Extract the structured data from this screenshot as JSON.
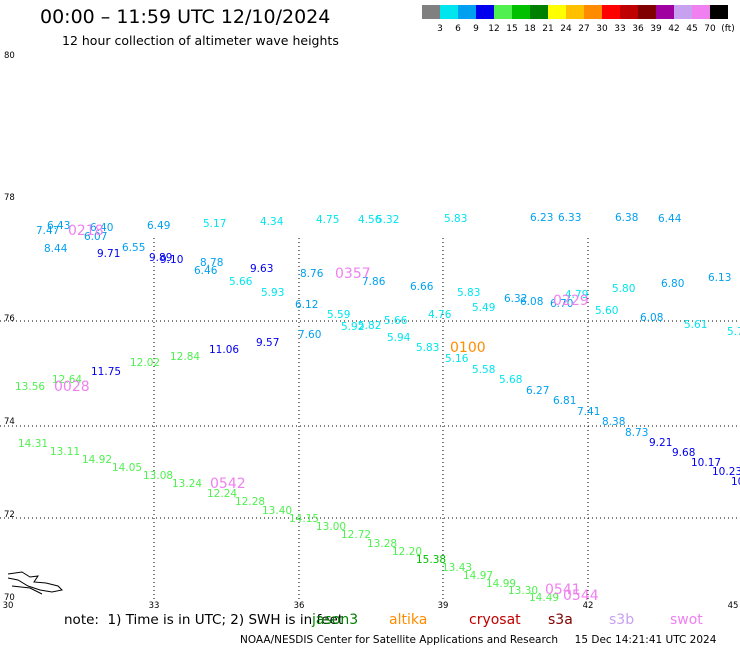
{
  "title": "00:00 – 11:59 UTC 12/10/2024",
  "subtitle": "12 hour collection of altimeter wave heights",
  "legend": {
    "colors": [
      "#808080",
      "#00e5ee",
      "#00a0f0",
      "#0000ee",
      "#50f050",
      "#00c000",
      "#008000",
      "#ffff00",
      "#ffc000",
      "#ff8c00",
      "#ff0000",
      "#c00000",
      "#800000",
      "#a000a0",
      "#c8a0f0",
      "#f080f0",
      "#000000"
    ],
    "labels": [
      "3",
      "6",
      "9",
      "12",
      "15",
      "18",
      "21",
      "24",
      "27",
      "30",
      "33",
      "36",
      "39",
      "42",
      "45",
      "70",
      "(ft)"
    ]
  },
  "axes": {
    "lat_labels": [
      "80",
      "78",
      "76",
      "74",
      "72",
      "70"
    ],
    "lon_labels": [
      "30",
      "33",
      "36",
      "39",
      "42",
      "45"
    ]
  },
  "note": "note:  1) Time is in UTC; 2) SWH is in feet",
  "satellites": [
    {
      "name": "jason3",
      "color": "#008000"
    },
    {
      "name": "altika",
      "color": "#ff8c00"
    },
    {
      "name": "cryosat",
      "color": "#c00000"
    },
    {
      "name": "s3a",
      "color": "#800000"
    },
    {
      "name": "s3b",
      "color": "#c8a0f0"
    },
    {
      "name": "swot",
      "color": "#f080f0"
    }
  ],
  "credit": "NOAA/NESDIS Center for Satellite Applications and Research     15 Dec 14:21:41 UTC 2024",
  "time_labels": [
    {
      "text": "0218",
      "color": "#f080f0"
    },
    {
      "text": "0357",
      "color": "#f080f0"
    },
    {
      "text": "0229",
      "color": "#f080f0"
    },
    {
      "text": "0100",
      "color": "#ff8c00"
    },
    {
      "text": "0028",
      "color": "#f080f0"
    },
    {
      "text": "0542",
      "color": "#f080f0"
    },
    {
      "text": "0541",
      "color": "#f080f0"
    },
    {
      "text": "0544",
      "color": "#f080f0"
    }
  ],
  "wave_heights": [
    {
      "v": "6.43",
      "c": "#00a0f0"
    },
    {
      "v": "7.47",
      "c": "#00a0f0"
    },
    {
      "v": "6.40",
      "c": "#00a0f0"
    },
    {
      "v": "6.07",
      "c": "#00a0f0"
    },
    {
      "v": "6.49",
      "c": "#00a0f0"
    },
    {
      "v": "5.17",
      "c": "#00e5ee"
    },
    {
      "v": "4.34",
      "c": "#00e5ee"
    },
    {
      "v": "4.75",
      "c": "#00e5ee"
    },
    {
      "v": "4.56",
      "c": "#00e5ee"
    },
    {
      "v": "5.32",
      "c": "#00e5ee"
    },
    {
      "v": "5.83",
      "c": "#00e5ee"
    },
    {
      "v": "6.23",
      "c": "#00a0f0"
    },
    {
      "v": "6.33",
      "c": "#00a0f0"
    },
    {
      "v": "6.38",
      "c": "#00a0f0"
    },
    {
      "v": "6.44",
      "c": "#00a0f0"
    },
    {
      "v": "8.44",
      "c": "#00a0f0"
    },
    {
      "v": "9.71",
      "c": "#0000ee"
    },
    {
      "v": "6.55",
      "c": "#00a0f0"
    },
    {
      "v": "9.89",
      "c": "#0000ee"
    },
    {
      "v": "9.10",
      "c": "#0000ee"
    },
    {
      "v": "6.46",
      "c": "#00a0f0"
    },
    {
      "v": "8.78",
      "c": "#00a0f0"
    },
    {
      "v": "9.63",
      "c": "#0000ee"
    },
    {
      "v": "5.66",
      "c": "#00e5ee"
    },
    {
      "v": "5.93",
      "c": "#00e5ee"
    },
    {
      "v": "8.76",
      "c": "#00a0f0"
    },
    {
      "v": "7.86",
      "c": "#00a0f0"
    },
    {
      "v": "6.66",
      "c": "#00a0f0"
    },
    {
      "v": "6.12",
      "c": "#00a0f0"
    },
    {
      "v": "5.59",
      "c": "#00e5ee"
    },
    {
      "v": "5.92",
      "c": "#00e5ee"
    },
    {
      "v": "5.82",
      "c": "#00e5ee"
    },
    {
      "v": "5.66",
      "c": "#00e5ee"
    },
    {
      "v": "4.76",
      "c": "#00e5ee"
    },
    {
      "v": "5.83",
      "c": "#00e5ee"
    },
    {
      "v": "5.49",
      "c": "#00e5ee"
    },
    {
      "v": "6.32",
      "c": "#00a0f0"
    },
    {
      "v": "6.08",
      "c": "#00a0f0"
    },
    {
      "v": "4.79",
      "c": "#00e5ee"
    },
    {
      "v": "6.70",
      "c": "#00a0f0"
    },
    {
      "v": "5.80",
      "c": "#00e5ee"
    },
    {
      "v": "5.60",
      "c": "#00e5ee"
    },
    {
      "v": "6.80",
      "c": "#00a0f0"
    },
    {
      "v": "6.13",
      "c": "#00a0f0"
    },
    {
      "v": "6.08",
      "c": "#00a0f0"
    },
    {
      "v": "5.61",
      "c": "#00e5ee"
    },
    {
      "v": "5.7",
      "c": "#00e5ee"
    },
    {
      "v": "7.60",
      "c": "#00a0f0"
    },
    {
      "v": "5.94",
      "c": "#00e5ee"
    },
    {
      "v": "5.83",
      "c": "#00e5ee"
    },
    {
      "v": "5.16",
      "c": "#00e5ee"
    },
    {
      "v": "5.58",
      "c": "#00e5ee"
    },
    {
      "v": "5.68",
      "c": "#00e5ee"
    },
    {
      "v": "6.27",
      "c": "#00a0f0"
    },
    {
      "v": "6.81",
      "c": "#00a0f0"
    },
    {
      "v": "7.41",
      "c": "#00a0f0"
    },
    {
      "v": "8.38",
      "c": "#00a0f0"
    },
    {
      "v": "8.73",
      "c": "#00a0f0"
    },
    {
      "v": "9.21",
      "c": "#0000ee"
    },
    {
      "v": "9.68",
      "c": "#0000ee"
    },
    {
      "v": "10.17",
      "c": "#0000ee"
    },
    {
      "v": "10.23",
      "c": "#0000ee"
    },
    {
      "v": "10",
      "c": "#0000ee"
    },
    {
      "v": "9.57",
      "c": "#0000ee"
    },
    {
      "v": "11.06",
      "c": "#0000ee"
    },
    {
      "v": "12.84",
      "c": "#50f050"
    },
    {
      "v": "12.02",
      "c": "#50f050"
    },
    {
      "v": "11.75",
      "c": "#0000ee"
    },
    {
      "v": "12.64",
      "c": "#50f050"
    },
    {
      "v": "13.56",
      "c": "#50f050"
    },
    {
      "v": "14.31",
      "c": "#50f050"
    },
    {
      "v": "13.11",
      "c": "#50f050"
    },
    {
      "v": "14.92",
      "c": "#50f050"
    },
    {
      "v": "14.05",
      "c": "#50f050"
    },
    {
      "v": "13.08",
      "c": "#50f050"
    },
    {
      "v": "13.24",
      "c": "#50f050"
    },
    {
      "v": "12.24",
      "c": "#50f050"
    },
    {
      "v": "12.28",
      "c": "#50f050"
    },
    {
      "v": "13.40",
      "c": "#50f050"
    },
    {
      "v": "14.15",
      "c": "#50f050"
    },
    {
      "v": "13.00",
      "c": "#50f050"
    },
    {
      "v": "12.72",
      "c": "#50f050"
    },
    {
      "v": "13.28",
      "c": "#50f050"
    },
    {
      "v": "12.20",
      "c": "#50f050"
    },
    {
      "v": "15.38",
      "c": "#00c000"
    },
    {
      "v": "13.43",
      "c": "#50f050"
    },
    {
      "v": "14.97",
      "c": "#50f050"
    },
    {
      "v": "14.99",
      "c": "#50f050"
    },
    {
      "v": "13.30",
      "c": "#50f050"
    },
    {
      "v": "14.49",
      "c": "#50f050"
    }
  ]
}
